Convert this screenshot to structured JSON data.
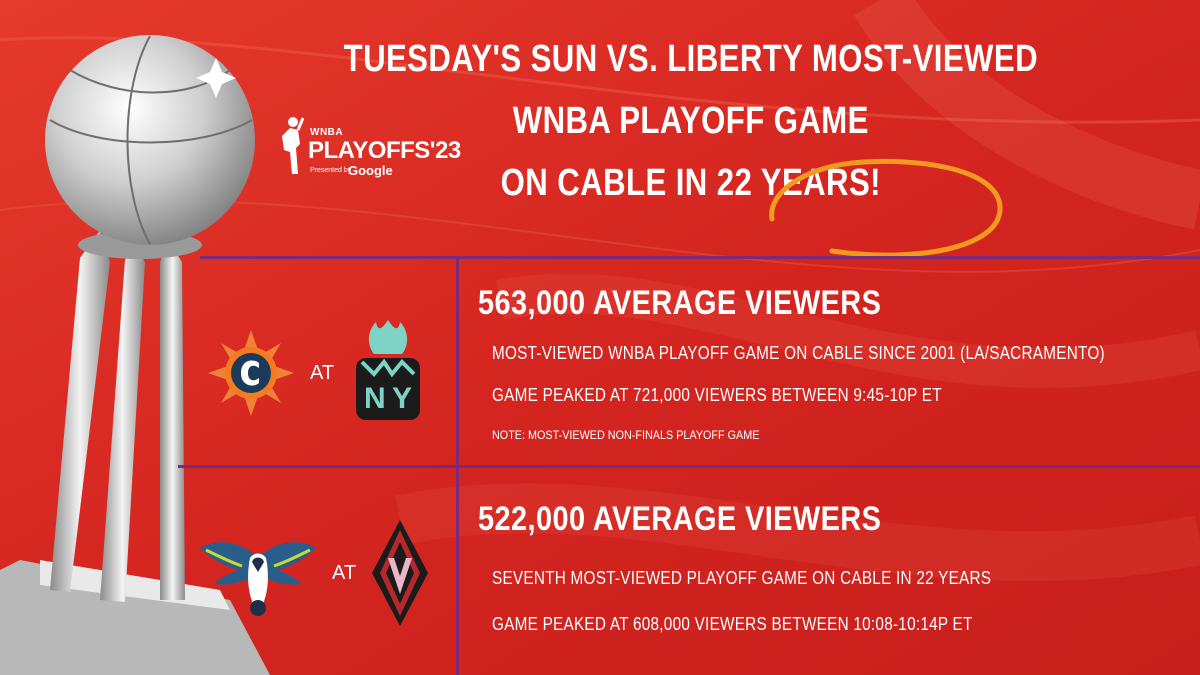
{
  "logo": {
    "wnba": "WNBA",
    "playoffs": "PLAYOFFS'23",
    "presented_by": "Presented by",
    "google": "Google"
  },
  "headline": {
    "line1": "TUESDAY'S SUN VS. LIBERTY MOST-VIEWED",
    "line2": "WNBA PLAYOFF GAME",
    "line3": "ON CABLE IN 22 YEARS!"
  },
  "games": [
    {
      "at_label": "AT",
      "title": "563,000 AVERAGE VIEWERS",
      "line1": "MOST-VIEWED WNBA PLAYOFF GAME ON CABLE SINCE 2001 (LA/SACRAMENTO)",
      "line2": "GAME PEAKED AT 721,000 VIEWERS BETWEEN 9:45-10P ET",
      "note": "NOTE: MOST-VIEWED NON-FINALS PLAYOFF GAME",
      "away_team_icon": "connecticut-sun-logo-icon",
      "home_team_icon": "new-york-liberty-logo-icon"
    },
    {
      "at_label": "AT",
      "title": "522,000 AVERAGE VIEWERS",
      "line1": "SEVENTH MOST-VIEWED PLAYOFF GAME ON CABLE IN 22 YEARS",
      "line2": "GAME PEAKED AT 608,000 VIEWERS BETWEEN 10:08-10:14P ET",
      "away_team_icon": "dallas-wings-logo-icon",
      "home_team_icon": "las-vegas-aces-logo-icon"
    }
  ],
  "colors": {
    "background": "#d82a24",
    "divider": "#7a2a78",
    "highlight_circle": "#f29a1f",
    "text": "#ffffff"
  }
}
